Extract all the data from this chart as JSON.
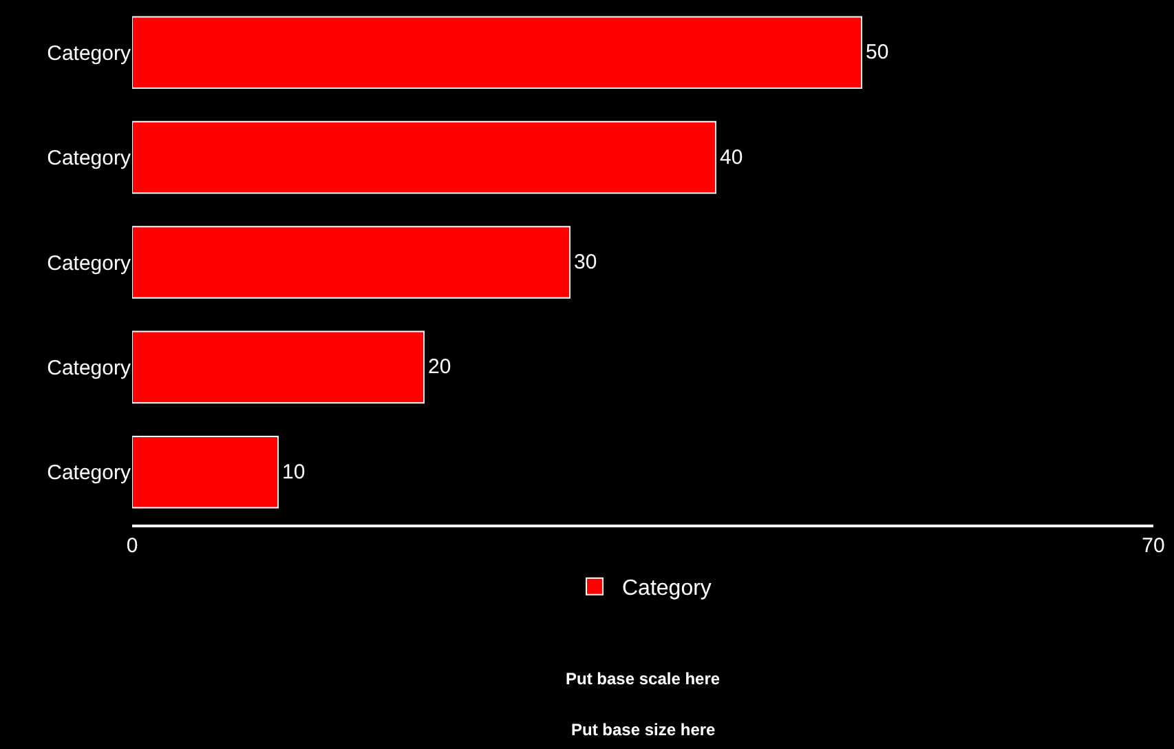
{
  "chart_data": {
    "type": "bar",
    "orientation": "horizontal",
    "categories": [
      "Category",
      "Category",
      "Category",
      "Category",
      "Category"
    ],
    "series": [
      {
        "name": "Category",
        "color": "#ff0000",
        "values": [
          50,
          40,
          30,
          20,
          10
        ]
      }
    ],
    "xlim": [
      0,
      70
    ],
    "xticks": [
      0,
      70
    ],
    "data_labels": true,
    "legend": "bottom",
    "grid": false,
    "annotations": [
      "Put base scale here",
      "Put base size here"
    ]
  }
}
